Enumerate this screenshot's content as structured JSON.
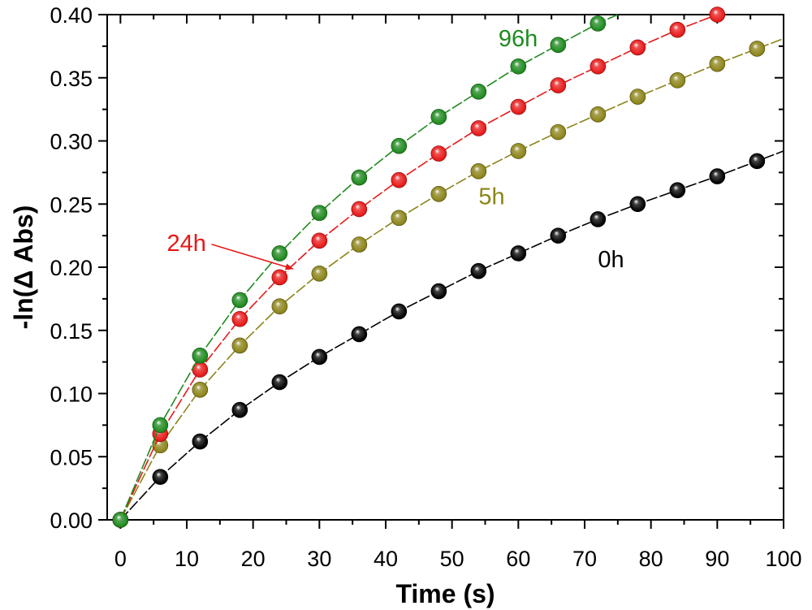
{
  "chart_data": {
    "type": "scatter",
    "title": "",
    "xlabel": "Time (s)",
    "ylabel": "-ln(Δ Abs)",
    "xlim": [
      -2,
      100
    ],
    "ylim": [
      0,
      0.4
    ],
    "x_ticks": [
      0,
      10,
      20,
      30,
      40,
      50,
      60,
      70,
      80,
      90,
      100
    ],
    "y_ticks": [
      0.0,
      0.05,
      0.1,
      0.15,
      0.2,
      0.25,
      0.3,
      0.35,
      0.4
    ],
    "grid": false,
    "series": [
      {
        "name": "0h",
        "color": "#000000",
        "x": [
          0,
          6,
          12,
          18,
          24,
          30,
          36,
          42,
          48,
          54,
          60,
          66,
          72,
          78,
          84,
          90,
          96
        ],
        "y": [
          0.0,
          0.034,
          0.062,
          0.087,
          0.109,
          0.129,
          0.147,
          0.165,
          0.181,
          0.197,
          0.211,
          0.225,
          0.238,
          0.25,
          0.261,
          0.272,
          0.284
        ],
        "fit_end": [
          100,
          0.292
        ]
      },
      {
        "name": "5h",
        "color": "#8c8419",
        "x": [
          0,
          6,
          12,
          18,
          24,
          30,
          36,
          42,
          48,
          54,
          60,
          66,
          72,
          78,
          84,
          90,
          96
        ],
        "y": [
          0.0,
          0.059,
          0.103,
          0.138,
          0.169,
          0.195,
          0.218,
          0.239,
          0.258,
          0.276,
          0.292,
          0.307,
          0.321,
          0.335,
          0.348,
          0.361,
          0.373
        ],
        "fit_end": [
          100,
          0.381
        ]
      },
      {
        "name": "24h",
        "color": "#e81818",
        "x": [
          0,
          6,
          12,
          18,
          24,
          30,
          36,
          42,
          48,
          54,
          60,
          66,
          72,
          78,
          84,
          90
        ],
        "y": [
          0.0,
          0.068,
          0.119,
          0.159,
          0.192,
          0.221,
          0.246,
          0.269,
          0.29,
          0.31,
          0.327,
          0.344,
          0.359,
          0.374,
          0.388,
          0.4
        ],
        "fit_end": [
          90,
          0.4
        ]
      },
      {
        "name": "96h",
        "color": "#1e8a1e",
        "x": [
          0,
          6,
          12,
          18,
          24,
          30,
          36,
          42,
          48,
          54,
          60,
          66,
          72
        ],
        "y": [
          0.0,
          0.075,
          0.13,
          0.174,
          0.211,
          0.243,
          0.271,
          0.296,
          0.319,
          0.339,
          0.359,
          0.376,
          0.393
        ],
        "fit_end": [
          75,
          0.4
        ]
      }
    ],
    "annotations": [
      {
        "text": "96h",
        "series": "96h",
        "x": 57,
        "y": 0.375
      },
      {
        "text": "5h",
        "series": "5h",
        "x": 54,
        "y": 0.25
      },
      {
        "text": "0h",
        "series": "0h",
        "x": 72,
        "y": 0.2
      },
      {
        "text": "24h",
        "series": "24h",
        "x": 7,
        "y": 0.213,
        "arrow_to": [
          26,
          0.2
        ]
      }
    ]
  }
}
